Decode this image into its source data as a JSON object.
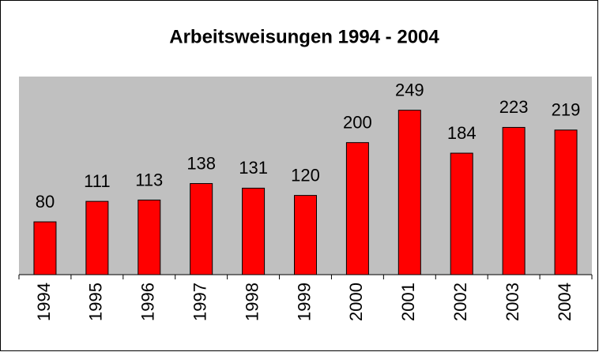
{
  "chart_data": {
    "type": "bar",
    "title": "Arbeitsweisungen 1994 - 2004",
    "categories": [
      "1994",
      "1995",
      "1996",
      "1997",
      "1998",
      "1999",
      "2000",
      "2001",
      "2002",
      "2003",
      "2004"
    ],
    "values": [
      80,
      111,
      113,
      138,
      131,
      120,
      200,
      249,
      184,
      223,
      219
    ],
    "color": "#ff0000",
    "ylim": [
      0,
      300
    ]
  }
}
